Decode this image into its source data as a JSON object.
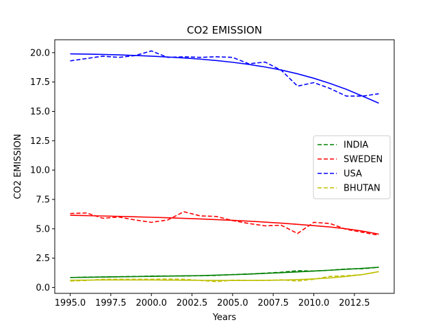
{
  "chart_data": {
    "type": "line",
    "title": "CO2 EMISSION",
    "xlabel": "Years",
    "ylabel": "CO2 EMISSION",
    "xlim": [
      1994.05,
      2014.95
    ],
    "ylim": [
      -0.5,
      21.1
    ],
    "xticks": [
      1995.0,
      1997.5,
      2000.0,
      2002.5,
      2005.0,
      2007.5,
      2010.0,
      2012.5
    ],
    "xtick_labels": [
      "1995.0",
      "1997.5",
      "2000.0",
      "2002.5",
      "2005.0",
      "2007.5",
      "2010.0",
      "2012.5"
    ],
    "yticks": [
      0.0,
      2.5,
      5.0,
      7.5,
      10.0,
      12.5,
      15.0,
      17.5,
      20.0
    ],
    "ytick_labels": [
      "0.0",
      "2.5",
      "5.0",
      "7.5",
      "10.0",
      "12.5",
      "15.0",
      "17.5",
      "20.0"
    ],
    "legend_position": "right",
    "x": [
      1995,
      1996,
      1997,
      1998,
      1999,
      2000,
      2001,
      2002,
      2003,
      2004,
      2005,
      2006,
      2007,
      2008,
      2009,
      2010,
      2011,
      2012,
      2013,
      2014
    ],
    "series": [
      {
        "name": "INDIA",
        "color": "#008000",
        "values": [
          0.85,
          0.88,
          0.9,
          0.92,
          0.94,
          0.97,
          0.98,
          0.98,
          1.0,
          1.03,
          1.1,
          1.15,
          1.22,
          1.3,
          1.43,
          1.4,
          1.47,
          1.58,
          1.6,
          1.72
        ],
        "trend": [
          0.85,
          0.87,
          0.89,
          0.91,
          0.93,
          0.95,
          0.97,
          0.99,
          1.01,
          1.05,
          1.09,
          1.14,
          1.2,
          1.26,
          1.33,
          1.4,
          1.47,
          1.55,
          1.63,
          1.72
        ]
      },
      {
        "name": "SWEDEN",
        "color": "#ff0000",
        "values": [
          6.3,
          6.35,
          5.9,
          6.0,
          5.75,
          5.55,
          5.75,
          6.45,
          6.1,
          6.05,
          5.7,
          5.45,
          5.25,
          5.3,
          4.6,
          5.55,
          5.45,
          4.95,
          4.7,
          4.45
        ],
        "trend": [
          6.15,
          6.12,
          6.09,
          6.06,
          6.02,
          5.98,
          5.94,
          5.89,
          5.84,
          5.78,
          5.72,
          5.65,
          5.57,
          5.48,
          5.38,
          5.27,
          5.15,
          5.0,
          4.8,
          4.55
        ]
      },
      {
        "name": "USA",
        "color": "#0000ff",
        "values": [
          19.3,
          19.5,
          19.7,
          19.6,
          19.75,
          20.15,
          19.6,
          19.65,
          19.6,
          19.65,
          19.6,
          19.05,
          19.2,
          18.5,
          17.15,
          17.45,
          16.95,
          16.3,
          16.3,
          16.5
        ],
        "trend": [
          19.9,
          19.88,
          19.85,
          19.81,
          19.76,
          19.7,
          19.63,
          19.55,
          19.45,
          19.33,
          19.18,
          19.0,
          18.78,
          18.52,
          18.2,
          17.82,
          17.38,
          16.88,
          16.3,
          15.7
        ]
      },
      {
        "name": "BHUTAN",
        "color": "#bfbf00",
        "values": [
          0.55,
          0.6,
          0.7,
          0.7,
          0.7,
          0.7,
          0.72,
          0.7,
          0.6,
          0.5,
          0.62,
          0.6,
          0.6,
          0.65,
          0.55,
          0.7,
          0.95,
          1.0,
          1.1,
          1.35
        ],
        "trend": [
          0.62,
          0.63,
          0.64,
          0.64,
          0.64,
          0.64,
          0.63,
          0.62,
          0.61,
          0.6,
          0.6,
          0.6,
          0.61,
          0.63,
          0.67,
          0.73,
          0.82,
          0.94,
          1.1,
          1.35
        ]
      }
    ]
  }
}
